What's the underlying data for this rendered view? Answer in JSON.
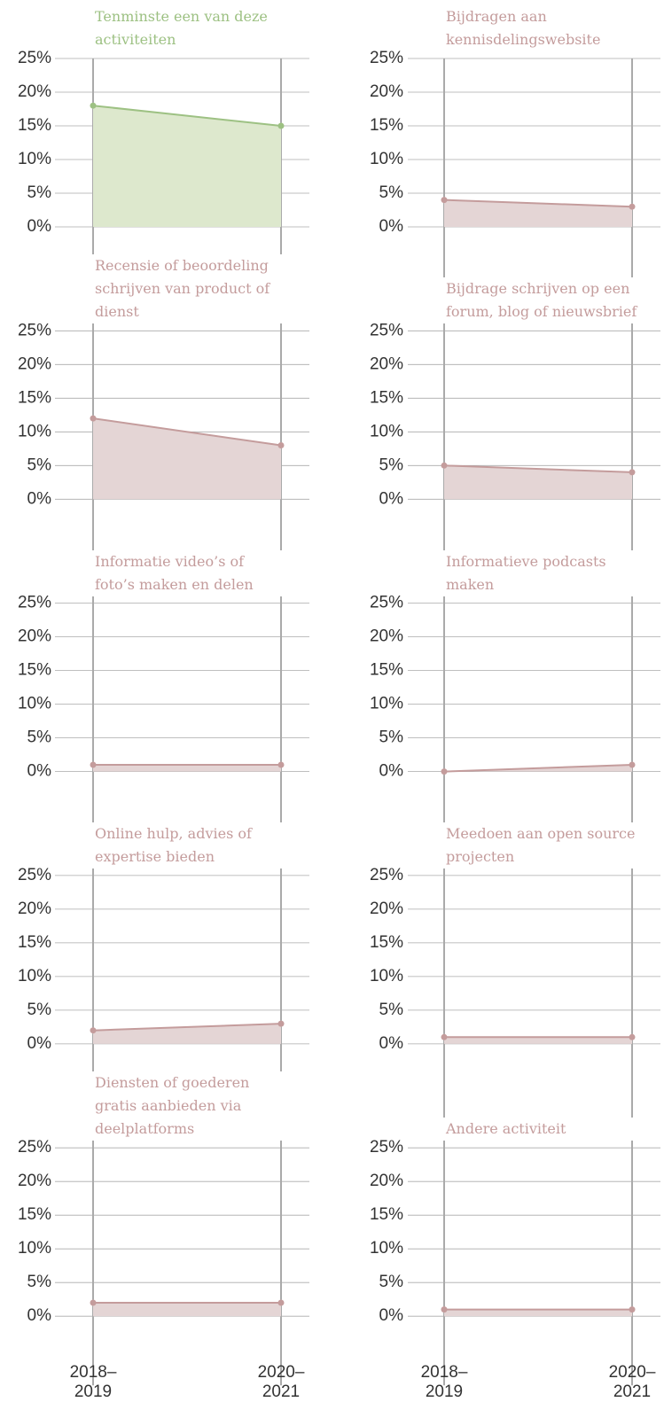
{
  "chart_data": [
    {
      "type": "area",
      "title": "Tenminste een van deze activiteiten",
      "color": "#9dc183",
      "fill": "#dde8cd",
      "values": [
        18,
        15
      ],
      "ylim": [
        0,
        25
      ],
      "yticks": [
        {
          "value": 0,
          "label": "0%"
        },
        {
          "value": 5,
          "label": "5%"
        },
        {
          "value": 10,
          "label": "10%"
        },
        {
          "value": 15,
          "label": "15%"
        },
        {
          "value": 20,
          "label": "20%"
        },
        {
          "value": 25,
          "label": "25%"
        }
      ]
    },
    {
      "type": "area",
      "title": "Bijdragen aan kennisdelingswebsite",
      "color": "#c49c9c",
      "fill": "#e4d5d5",
      "values": [
        4,
        3
      ],
      "ylim": [
        0,
        25
      ],
      "yticks": [
        {
          "value": 0,
          "label": "0%"
        },
        {
          "value": 5,
          "label": "5%"
        },
        {
          "value": 10,
          "label": "10%"
        },
        {
          "value": 15,
          "label": "15%"
        },
        {
          "value": 20,
          "label": "20%"
        },
        {
          "value": 25,
          "label": "25%"
        }
      ]
    },
    {
      "type": "area",
      "title": "Recensie of beoordeling schrijven van product of dienst",
      "color": "#c49c9c",
      "fill": "#e4d5d5",
      "values": [
        12,
        8
      ],
      "ylim": [
        0,
        25
      ],
      "yticks": [
        {
          "value": 0,
          "label": "0%"
        },
        {
          "value": 5,
          "label": "5%"
        },
        {
          "value": 10,
          "label": "10%"
        },
        {
          "value": 15,
          "label": "15%"
        },
        {
          "value": 20,
          "label": "20%"
        },
        {
          "value": 25,
          "label": "25%"
        }
      ]
    },
    {
      "type": "area",
      "title": "Bijdrage schrijven op een forum, blog of nieuwsbrief",
      "color": "#c49c9c",
      "fill": "#e4d5d5",
      "values": [
        5,
        4
      ],
      "ylim": [
        0,
        25
      ],
      "yticks": [
        {
          "value": 0,
          "label": "0%"
        },
        {
          "value": 5,
          "label": "5%"
        },
        {
          "value": 10,
          "label": "10%"
        },
        {
          "value": 15,
          "label": "15%"
        },
        {
          "value": 20,
          "label": "20%"
        },
        {
          "value": 25,
          "label": "25%"
        }
      ]
    },
    {
      "type": "area",
      "title": "Informatie video’s of foto’s maken en delen",
      "color": "#c49c9c",
      "fill": "#e4d5d5",
      "values": [
        1,
        1
      ],
      "ylim": [
        0,
        25
      ],
      "yticks": [
        {
          "value": 0,
          "label": "0%"
        },
        {
          "value": 5,
          "label": "5%"
        },
        {
          "value": 10,
          "label": "10%"
        },
        {
          "value": 15,
          "label": "15%"
        },
        {
          "value": 20,
          "label": "20%"
        },
        {
          "value": 25,
          "label": "25%"
        }
      ]
    },
    {
      "type": "area",
      "title": "Informatieve podcasts maken",
      "color": "#c49c9c",
      "fill": "#e4d5d5",
      "values": [
        0,
        1
      ],
      "ylim": [
        0,
        25
      ],
      "yticks": [
        {
          "value": 0,
          "label": "0%"
        },
        {
          "value": 5,
          "label": "5%"
        },
        {
          "value": 10,
          "label": "10%"
        },
        {
          "value": 15,
          "label": "15%"
        },
        {
          "value": 20,
          "label": "20%"
        },
        {
          "value": 25,
          "label": "25%"
        }
      ]
    },
    {
      "type": "area",
      "title": "Online hulp, advies of expertise bieden",
      "color": "#c49c9c",
      "fill": "#e4d5d5",
      "values": [
        2,
        3
      ],
      "ylim": [
        0,
        25
      ],
      "yticks": [
        {
          "value": 0,
          "label": "0%"
        },
        {
          "value": 5,
          "label": "5%"
        },
        {
          "value": 10,
          "label": "10%"
        },
        {
          "value": 15,
          "label": "15%"
        },
        {
          "value": 20,
          "label": "20%"
        },
        {
          "value": 25,
          "label": "25%"
        }
      ]
    },
    {
      "type": "area",
      "title": "Meedoen aan open source projecten",
      "color": "#c49c9c",
      "fill": "#e4d5d5",
      "values": [
        1,
        1
      ],
      "ylim": [
        0,
        25
      ],
      "yticks": [
        {
          "value": 0,
          "label": "0%"
        },
        {
          "value": 5,
          "label": "5%"
        },
        {
          "value": 10,
          "label": "10%"
        },
        {
          "value": 15,
          "label": "15%"
        },
        {
          "value": 20,
          "label": "20%"
        },
        {
          "value": 25,
          "label": "25%"
        }
      ]
    },
    {
      "type": "area",
      "title": "Diensten of goederen gratis aanbieden via deelplatforms",
      "color": "#c49c9c",
      "fill": "#e4d5d5",
      "values": [
        2,
        2
      ],
      "categories": [
        "2018–2019",
        "2020–2021"
      ],
      "ylim": [
        0,
        25
      ],
      "yticks": [
        {
          "value": 0,
          "label": "0%"
        },
        {
          "value": 5,
          "label": "5%"
        },
        {
          "value": 10,
          "label": "10%"
        },
        {
          "value": 15,
          "label": "15%"
        },
        {
          "value": 20,
          "label": "20%"
        },
        {
          "value": 25,
          "label": "25%"
        }
      ]
    },
    {
      "type": "area",
      "title": "Andere activiteit",
      "color": "#c49c9c",
      "fill": "#e4d5d5",
      "values": [
        1,
        1
      ],
      "categories": [
        "2018–2019",
        "2020–2021"
      ],
      "ylim": [
        0,
        25
      ],
      "yticks": [
        {
          "value": 0,
          "label": "0%"
        },
        {
          "value": 5,
          "label": "5%"
        },
        {
          "value": 10,
          "label": "10%"
        },
        {
          "value": 15,
          "label": "15%"
        },
        {
          "value": 20,
          "label": "20%"
        },
        {
          "value": 25,
          "label": "25%"
        }
      ]
    }
  ]
}
